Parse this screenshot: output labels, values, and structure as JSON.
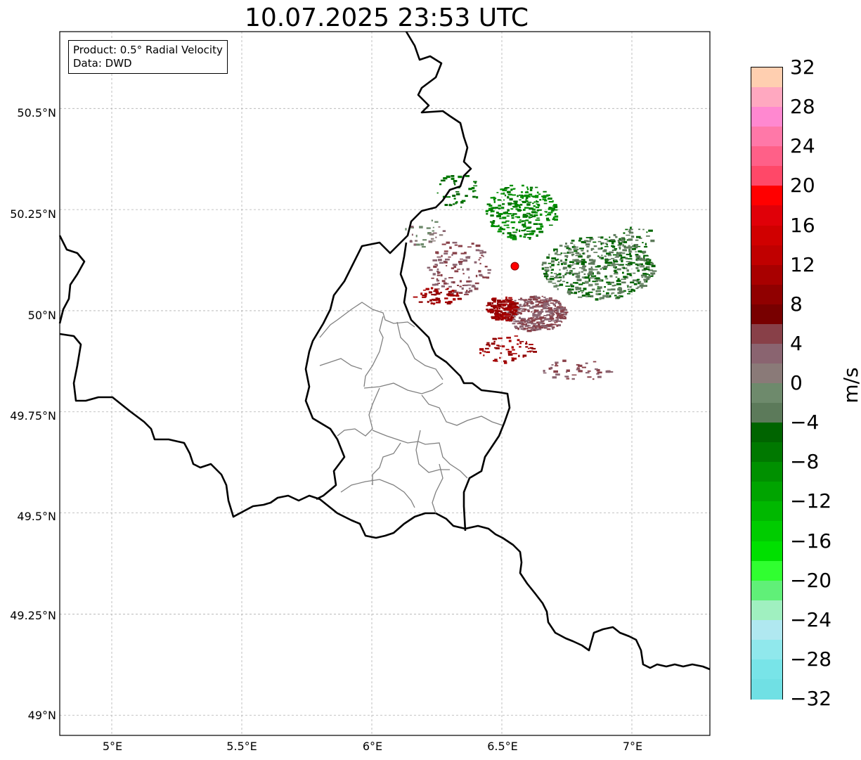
{
  "title": "10.07.2025 23:53 UTC",
  "infobox": {
    "product": "Product: 0.5° Radial Velocity",
    "data": "Data: DWD"
  },
  "axes": {
    "lat_labels": [
      "50.5°N",
      "50.25°N",
      "50°N",
      "49.75°N",
      "49.5°N",
      "49.25°N",
      "49°N"
    ],
    "lon_labels": [
      "5°E",
      "5.5°E",
      "6°E",
      "6.5°E",
      "7°E"
    ]
  },
  "colorbar": {
    "unit": "m/s",
    "labels": [
      "32",
      "28",
      "24",
      "20",
      "16",
      "12",
      "8",
      "4",
      "0",
      "−4",
      "−8",
      "−12",
      "−16",
      "−20",
      "−24",
      "−28",
      "−32"
    ],
    "colors_top_to_bottom": [
      "#ffcfb0",
      "#ffa8c0",
      "#ff88d0",
      "#ff78a8",
      "#ff6088",
      "#ff4868",
      "#ff0000",
      "#e00008",
      "#d00000",
      "#c00000",
      "#a80000",
      "#900000",
      "#780000",
      "#884048",
      "#8a6470",
      "#8a7a78",
      "#6e8a6c",
      "#5c7a5a",
      "#006400",
      "#007800",
      "#009000",
      "#00a400",
      "#00b800",
      "#00cc00",
      "#00e000",
      "#30ff30",
      "#60f078",
      "#a0f0c0",
      "#b0e8f0",
      "#90e8ec",
      "#78e4e8",
      "#70e0e4"
    ]
  },
  "radar_site": {
    "lon": 6.55,
    "lat": 50.11,
    "color": "#ff0000"
  },
  "chart_data": {
    "type": "heatmap",
    "xlim": [
      4.8,
      7.3
    ],
    "ylim": [
      48.95,
      50.69
    ],
    "grid": true,
    "clim": [
      -32,
      32
    ],
    "note_regions": [
      {
        "velocity": -8,
        "lon_range": [
          6.45,
          6.72
        ],
        "lat_range": [
          50.17,
          50.32
        ]
      },
      {
        "velocity": -4,
        "lon_range": [
          6.7,
          7.0
        ],
        "lat_range": [
          50.05,
          50.22
        ]
      },
      {
        "velocity": 6,
        "lon_range": [
          6.6,
          6.75
        ],
        "lat_range": [
          49.95,
          50.06
        ]
      },
      {
        "velocity": 10,
        "lon_range": [
          6.45,
          6.55
        ],
        "lat_range": [
          49.98,
          50.05
        ]
      },
      {
        "velocity": 4,
        "lon_range": [
          6.3,
          6.42
        ],
        "lat_range": [
          50.05,
          50.17
        ]
      }
    ]
  }
}
